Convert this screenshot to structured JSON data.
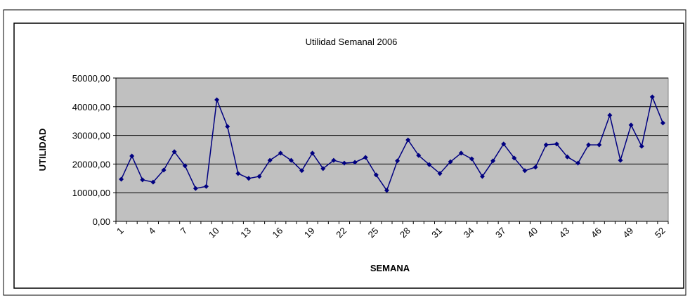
{
  "chart_data": {
    "type": "line",
    "title": "Utilidad Semanal 2006",
    "x_label": "SEMANA",
    "y_label": "UTILIDAD",
    "categories": [
      "1",
      null,
      null,
      "4",
      null,
      null,
      "7",
      null,
      null,
      "10",
      null,
      null,
      "13",
      null,
      null,
      "16",
      null,
      null,
      "19",
      null,
      null,
      "22",
      null,
      null,
      "25",
      null,
      null,
      "28",
      null,
      null,
      "31",
      null,
      null,
      "34",
      null,
      null,
      "37",
      null,
      null,
      "40",
      null,
      null,
      "43",
      null,
      null,
      "46",
      null,
      null,
      "49",
      null,
      null,
      "52"
    ],
    "series": [
      {
        "name": "UTILIDAD",
        "color": "#000080",
        "values": [
          14700,
          22800,
          14500,
          13700,
          17900,
          24300,
          19400,
          11500,
          12200,
          42400,
          33100,
          16700,
          15000,
          15700,
          21300,
          23800,
          21300,
          17700,
          23800,
          18400,
          21300,
          20300,
          20600,
          22300,
          16200,
          10800,
          21100,
          28400,
          23000,
          19800,
          16700,
          20800,
          23800,
          21800,
          15700,
          21100,
          27000,
          22100,
          17700,
          18900,
          26700,
          27000,
          22500,
          20300,
          26700,
          26700,
          37000,
          21300,
          33600,
          26200,
          43400,
          34300
        ]
      }
    ],
    "ylim": [
      0,
      50000
    ],
    "yticks": [
      {
        "value": 0,
        "label": "0,00"
      },
      {
        "value": 10000,
        "label": "10000,00"
      },
      {
        "value": 20000,
        "label": "20000,00"
      },
      {
        "value": 30000,
        "label": "30000,00"
      },
      {
        "value": 40000,
        "label": "40000,00"
      },
      {
        "value": 50000,
        "label": "50000,00"
      }
    ],
    "grid": true,
    "plot_background": "#c0c0c0"
  }
}
